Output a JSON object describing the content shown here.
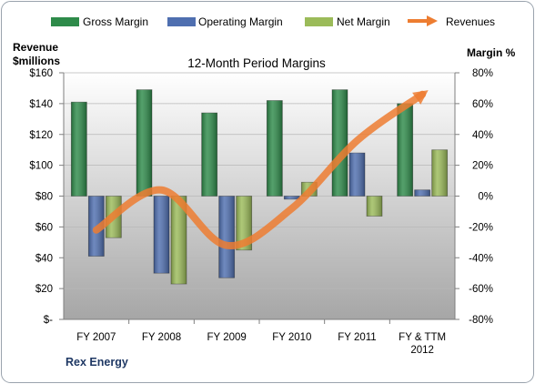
{
  "chart_data": {
    "type": "bar",
    "title": "12-Month Period Margins",
    "left_axis_label_line1": "Revenue",
    "left_axis_label_line2": "$millions",
    "right_axis_label": "Margin %",
    "footer_label": "Rex Energy",
    "categories": [
      [
        "FY 2007"
      ],
      [
        "FY 2008"
      ],
      [
        "FY 2009"
      ],
      [
        "FY 2010"
      ],
      [
        "FY 2011"
      ],
      [
        "FY & TTM",
        "2012"
      ]
    ],
    "left_axis": {
      "min": 0,
      "max": 160,
      "step": 20,
      "tick_labels": [
        "$-",
        "$20",
        "$40",
        "$60",
        "$80",
        "$100",
        "$120",
        "$140",
        "$160"
      ]
    },
    "right_axis": {
      "min": -80,
      "max": 80,
      "step": 20,
      "tick_labels": [
        "-80%",
        "-60%",
        "-40%",
        "-20%",
        "0%",
        "20%",
        "40%",
        "60%",
        "80%"
      ]
    },
    "series": [
      {
        "name": "Gross Margin",
        "axis": "right",
        "kind": "bar",
        "color": "#2e8b4a",
        "values": [
          61,
          69,
          54,
          62,
          69,
          60
        ]
      },
      {
        "name": "Operating Margin",
        "axis": "right",
        "kind": "bar",
        "color": "#4f6fb0",
        "values": [
          -39,
          -50,
          -53,
          -2,
          28,
          4
        ]
      },
      {
        "name": "Net Margin",
        "axis": "right",
        "kind": "bar",
        "color": "#9bbb59",
        "values": [
          -27,
          -57,
          -35,
          9,
          -13,
          30
        ]
      },
      {
        "name": "Revenues",
        "axis": "left",
        "kind": "arrow-line",
        "color": "#ed7d31",
        "values": [
          58,
          84,
          48,
          72,
          116,
          146
        ]
      }
    ],
    "plot_background": [
      "#ffffff",
      "#a6a6a6"
    ],
    "grid": true,
    "legend_position": "top"
  }
}
